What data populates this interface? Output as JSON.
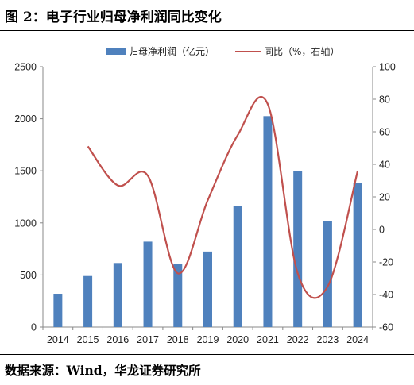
{
  "figure_title": "图 2：电子行业归母净利润同比变化",
  "source_text": "数据来源：Wind，华龙证券研究所",
  "chart_data": {
    "type": "bar",
    "categories": [
      "2014",
      "2015",
      "2016",
      "2017",
      "2018",
      "2019",
      "2020",
      "2021",
      "2022",
      "2023",
      "2024"
    ],
    "series": [
      {
        "name": "归母净利润（亿元）",
        "type": "bar",
        "axis": "left",
        "color": "#4f81bd",
        "values": [
          320,
          490,
          615,
          820,
          605,
          725,
          1160,
          2025,
          1500,
          1015,
          1380
        ]
      },
      {
        "name": "同比（%，右轴）",
        "type": "line",
        "axis": "right",
        "color": "#c0504d",
        "smooth": true,
        "values": [
          null,
          51,
          27,
          33,
          -27,
          18,
          58,
          77,
          -27,
          -35,
          36
        ]
      }
    ],
    "y_left": {
      "min": 0,
      "max": 2500,
      "ticks": [
        0,
        500,
        1000,
        1500,
        2000,
        2500
      ]
    },
    "y_right": {
      "min": -60,
      "max": 100,
      "ticks": [
        -60,
        -40,
        -20,
        0,
        20,
        40,
        60,
        80,
        100
      ]
    },
    "legend_position": "top",
    "grid": false
  }
}
